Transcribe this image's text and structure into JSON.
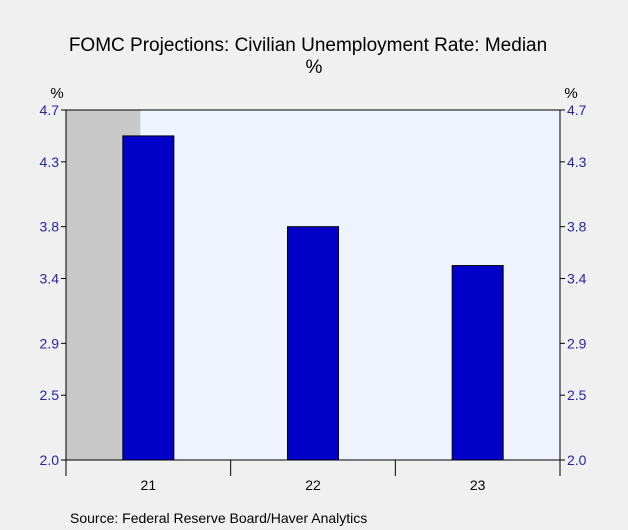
{
  "chart_data": {
    "type": "bar",
    "title": "FOMC Projections: Civilian Unemployment Rate: Median",
    "subtitle": "%",
    "ylabel_left": "%",
    "ylabel_right": "%",
    "categories": [
      "21",
      "22",
      "23"
    ],
    "values": [
      4.5,
      3.8,
      3.5
    ],
    "ylim": [
      2.0,
      4.7
    ],
    "yticks": [
      2.0,
      2.5,
      2.9,
      3.4,
      3.8,
      4.3,
      4.7
    ],
    "yticks_text": [
      "2.0",
      "2.5",
      "2.9",
      "3.4",
      "3.8",
      "4.3",
      "4.7"
    ],
    "grid": false,
    "legend": "none",
    "shaded_region": {
      "category": "21",
      "portion": "first-half"
    },
    "source": "Source:  Federal Reserve Board/Haver Analytics",
    "colors": {
      "bar": "#0000c8",
      "bar_edge": "#000000",
      "plot_background": "#eef3ff",
      "shaded": "#c8c8c8",
      "axis_text": "#2424a8",
      "page_background": "#f0f0f0"
    }
  }
}
